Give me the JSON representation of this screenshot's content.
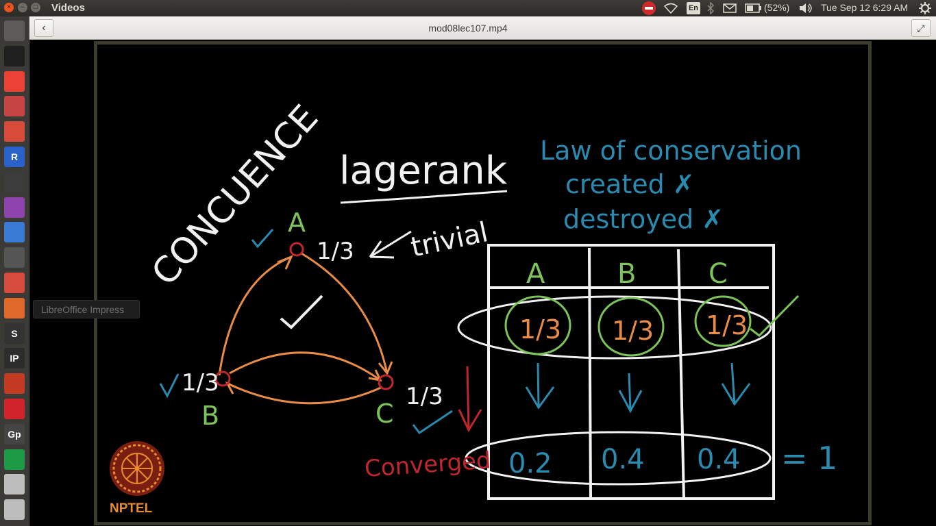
{
  "window": {
    "app_title": "Videos",
    "close_glyph": "×",
    "min_glyph": "–",
    "max_glyph": "□"
  },
  "header": {
    "file_title": "mod08lec107.mp4",
    "back_glyph": "‹",
    "fullscreen_glyph": "⤢"
  },
  "tray": {
    "keyboard_layout": "En",
    "battery": "(52%)",
    "clock": "Tue Sep 12  6:29 AM"
  },
  "launcher": {
    "tooltip": "LibreOffice Impress",
    "items": [
      {
        "name": "dash-icon"
      },
      {
        "name": "terminal-icon"
      },
      {
        "name": "chrome-icon"
      },
      {
        "name": "files-icon"
      },
      {
        "name": "document-viewer-icon"
      },
      {
        "name": "r-icon",
        "glyph": "R"
      },
      {
        "name": "clapper-icon"
      },
      {
        "name": "video-editor-icon"
      },
      {
        "name": "writer-doc-icon"
      },
      {
        "name": "text-editor-icon"
      },
      {
        "name": "gmail-icon"
      },
      {
        "name": "impress-icon"
      },
      {
        "name": "sublime-icon",
        "glyph": "S"
      },
      {
        "name": "ipython-icon",
        "glyph": "IP"
      },
      {
        "name": "network-icon"
      },
      {
        "name": "opera-icon"
      },
      {
        "name": "gephi-icon",
        "glyph": "Gp"
      },
      {
        "name": "calc-icon"
      },
      {
        "name": "drive-icon"
      },
      {
        "name": "drive2-icon"
      }
    ]
  },
  "video": {
    "title": "lagerank",
    "side_word": "CONCUENCE",
    "note_trivial": "trivial",
    "law_line1": "Law of conservation",
    "law_line2": "created ✗",
    "law_line3": "destroyed ✗",
    "node_a": "A",
    "node_b": "B",
    "node_c": "C",
    "third": "1/3",
    "table_headers": [
      "A",
      "B",
      "C"
    ],
    "table_initial": [
      "1/3",
      "1/3",
      "1/3"
    ],
    "table_converged": [
      "0.2",
      "0.4",
      "0.4"
    ],
    "converged_label": "Converged",
    "sum": "= 1",
    "nptel": "NPTEL"
  },
  "colors": {
    "panel": "#3c3b37",
    "edge_orange": "#e88c46",
    "node_red": "#c1272d",
    "label_green": "#7cc35a",
    "blue_ink": "#2a8ab0",
    "red_ink": "#c0262d"
  }
}
